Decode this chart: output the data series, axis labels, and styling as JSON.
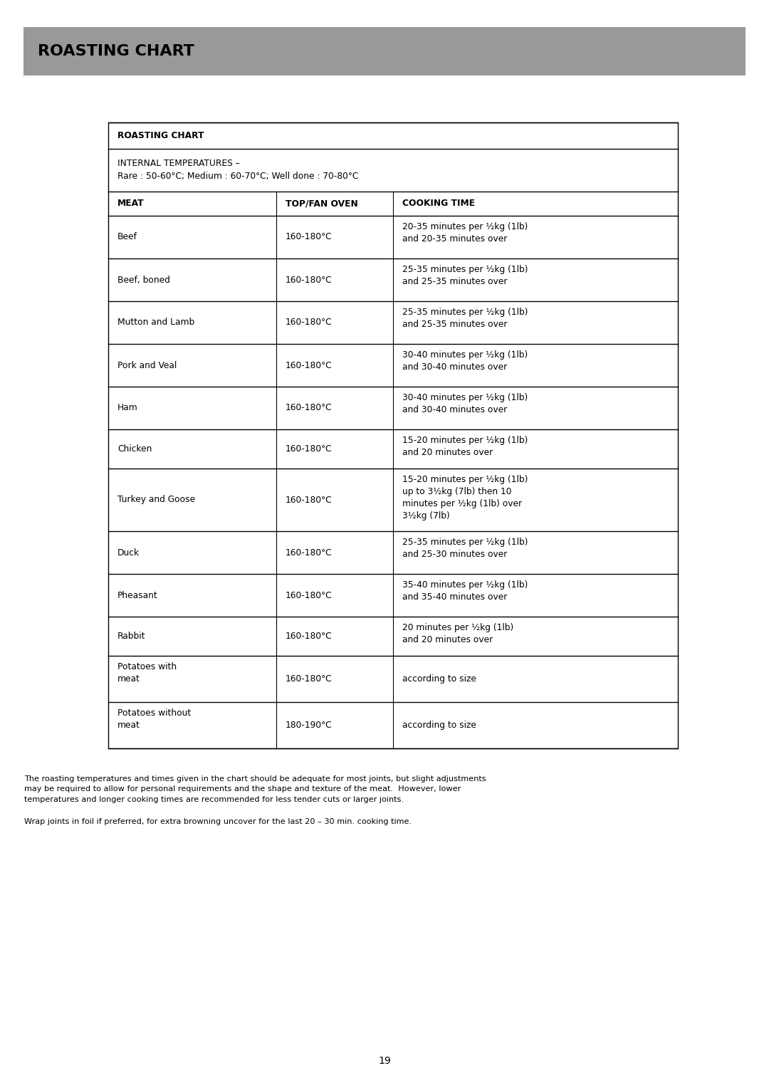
{
  "page_title": "ROASTING CHART",
  "page_title_bg": "#999999",
  "page_title_color": "#000000",
  "table_title": "ROASTING CHART",
  "internal_temps": "INTERNAL TEMPERATURES –\nRare : 50-60°C; Medium : 60-70°C; Well done : 70-80°C",
  "col_headers": [
    "MEAT",
    "TOP/FAN OVEN",
    "COOKING TIME"
  ],
  "rows": [
    [
      "Beef",
      "160-180°C",
      "20-35 minutes per ½kg (1lb)\nand 20-35 minutes over"
    ],
    [
      "Beef, boned",
      "160-180°C",
      "25-35 minutes per ½kg (1lb)\nand 25-35 minutes over"
    ],
    [
      "Mutton and Lamb",
      "160-180°C",
      "25-35 minutes per ½kg (1lb)\nand 25-35 minutes over"
    ],
    [
      "Pork and Veal",
      "160-180°C",
      "30-40 minutes per ½kg (1lb)\nand 30-40 minutes over"
    ],
    [
      "Ham",
      "160-180°C",
      "30-40 minutes per ½kg (1lb)\nand 30-40 minutes over"
    ],
    [
      "Chicken",
      "160-180°C",
      "15-20 minutes per ½kg (1lb)\nand 20 minutes over"
    ],
    [
      "Turkey and Goose",
      "160-180°C",
      "15-20 minutes per ½kg (1lb)\nup to 3½kg (7lb) then 10\nminutes per ½kg (1lb) over\n3½kg (7lb)"
    ],
    [
      "Duck",
      "160-180°C",
      "25-35 minutes per ½kg (1lb)\nand 25-30 minutes over"
    ],
    [
      "Pheasant",
      "160-180°C",
      "35-40 minutes per ½kg (1lb)\nand 35-40 minutes over"
    ],
    [
      "Rabbit",
      "160-180°C",
      "20 minutes per ½kg (1lb)\nand 20 minutes over"
    ],
    [
      "Potatoes with\nmeat",
      "160-180°C",
      "according to size"
    ],
    [
      "Potatoes without\nmeat",
      "180-190°C",
      "according to size"
    ]
  ],
  "footnote1": "The roasting temperatures and times given in the chart should be adequate for most joints, but slight adjustments\nmay be required to allow for personal requirements and the shape and texture of the meat.  However, lower\ntemperatures and longer cooking times are recommended for less tender cuts or larger joints.",
  "footnote2": "Wrap joints in foil if preferred, for extra browning uncover for the last 20 – 30 min. cooking time.",
  "page_number": "19",
  "bg_color": "#ffffff",
  "table_border_color": "#000000",
  "text_color": "#000000",
  "banner_color": "#999999"
}
